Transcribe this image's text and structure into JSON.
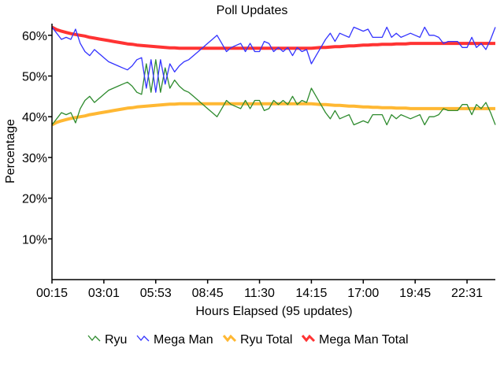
{
  "chart_data": {
    "type": "line",
    "title": "Poll Updates",
    "xlabel": "Hours Elapsed (95 updates)",
    "ylabel": "Percentage",
    "ylim": [
      0,
      65
    ],
    "yticks": [
      "10%",
      "20%",
      "30%",
      "40%",
      "50%",
      "60%"
    ],
    "ytick_values": [
      10,
      20,
      30,
      40,
      50,
      60
    ],
    "xticks": [
      "00:15",
      "03:01",
      "05:53",
      "08:45",
      "11:30",
      "14:15",
      "17:00",
      "19:45",
      "22:31"
    ],
    "xtick_indices": [
      0,
      11,
      22,
      33,
      44,
      55,
      66,
      77,
      88
    ],
    "legend_position": "bottom",
    "series": [
      {
        "name": "Ryu",
        "color": "#2e8b2e",
        "width": 1.3,
        "values": [
          38,
          39.5,
          41,
          40.5,
          41,
          38.5,
          42,
          44,
          45,
          43.5,
          44.5,
          45.5,
          46.5,
          47,
          47.5,
          48,
          48.5,
          47.5,
          46,
          45.5,
          53,
          46,
          54,
          46,
          52,
          47,
          49,
          47.5,
          46.5,
          46,
          45,
          44,
          43,
          42,
          41,
          40,
          42,
          44,
          43,
          42.5,
          42,
          44,
          42,
          44,
          44,
          41.5,
          42,
          44,
          43,
          44,
          43,
          45,
          43,
          44,
          43.5,
          47,
          45,
          43,
          41,
          39.5,
          41.5,
          39.5,
          40,
          40.5,
          38,
          38.5,
          39,
          38.5,
          40.5,
          40.5,
          40.5,
          38,
          40.5,
          39.5,
          40.5,
          40,
          39.5,
          40,
          40.5,
          38,
          40,
          40,
          40.5,
          42,
          41.5,
          41.5,
          41.5,
          43,
          43,
          40.5,
          43,
          42,
          43.5,
          41,
          38
        ]
      },
      {
        "name": "Mega Man",
        "color": "#3333ff",
        "width": 1.3,
        "values": [
          62,
          60.5,
          59,
          59.5,
          59,
          61.5,
          58,
          56,
          55,
          56.5,
          55.5,
          54.5,
          53.5,
          53,
          52.5,
          52,
          51.5,
          52.5,
          54,
          54.5,
          47,
          54,
          46,
          54,
          48,
          53,
          51,
          52.5,
          53.5,
          54,
          55,
          56,
          57,
          58,
          59,
          60,
          58,
          56,
          57,
          57.5,
          58,
          56,
          58,
          56,
          56,
          58.5,
          58,
          56,
          57,
          56,
          57,
          55,
          57,
          56,
          56.5,
          53,
          55,
          57,
          59,
          60.5,
          58.5,
          60.5,
          60,
          59.5,
          62,
          61.5,
          61,
          61.5,
          59.5,
          59.5,
          59.5,
          62,
          59.5,
          60.5,
          59.5,
          60,
          60.5,
          60,
          59.5,
          62,
          60,
          60,
          59.5,
          58,
          58.5,
          58.5,
          58.5,
          57,
          57,
          59.5,
          57,
          58,
          56.5,
          59,
          62
        ]
      },
      {
        "name": "Ryu Total",
        "color": "#ffb833",
        "width": 4,
        "values": [
          38,
          38.6,
          39,
          39.3,
          39.6,
          39.8,
          40,
          40.2,
          40.5,
          40.7,
          40.9,
          41.1,
          41.3,
          41.5,
          41.7,
          41.9,
          42.1,
          42.2,
          42.4,
          42.5,
          42.6,
          42.7,
          42.8,
          42.9,
          43,
          43.1,
          43.1,
          43.2,
          43.2,
          43.2,
          43.2,
          43.2,
          43.2,
          43.2,
          43.2,
          43.2,
          43.2,
          43.2,
          43.2,
          43.2,
          43.2,
          43.2,
          43.2,
          43.2,
          43.2,
          43.2,
          43.2,
          43.2,
          43.2,
          43.2,
          43.2,
          43.2,
          43.2,
          43.2,
          43.2,
          43.2,
          43.1,
          43,
          43,
          42.9,
          42.8,
          42.8,
          42.7,
          42.6,
          42.6,
          42.5,
          42.4,
          42.4,
          42.3,
          42.3,
          42.2,
          42.2,
          42.2,
          42.1,
          42.1,
          42.1,
          42,
          42,
          42,
          42,
          42,
          42,
          42,
          42,
          42,
          42,
          42,
          42,
          42,
          42,
          42,
          42,
          42,
          42,
          42
        ]
      },
      {
        "name": "Mega Man Total",
        "color": "#ff3333",
        "width": 4,
        "values": [
          62,
          61.4,
          61,
          60.7,
          60.4,
          60.2,
          60,
          59.8,
          59.5,
          59.3,
          59.1,
          58.9,
          58.7,
          58.5,
          58.3,
          58.1,
          57.9,
          57.8,
          57.6,
          57.5,
          57.4,
          57.3,
          57.2,
          57.1,
          57,
          56.9,
          56.9,
          56.8,
          56.8,
          56.8,
          56.8,
          56.8,
          56.8,
          56.8,
          56.8,
          56.8,
          56.8,
          56.8,
          56.8,
          56.8,
          56.8,
          56.8,
          56.8,
          56.8,
          56.8,
          56.8,
          56.8,
          56.8,
          56.8,
          56.8,
          56.8,
          56.8,
          56.8,
          56.8,
          56.8,
          56.8,
          56.9,
          57,
          57,
          57.1,
          57.2,
          57.2,
          57.3,
          57.4,
          57.4,
          57.5,
          57.6,
          57.6,
          57.7,
          57.7,
          57.8,
          57.8,
          57.8,
          57.9,
          57.9,
          57.9,
          58,
          58,
          58,
          58,
          58,
          58,
          58,
          58,
          58,
          58,
          58,
          58,
          58,
          58,
          58,
          58,
          58,
          58,
          58
        ]
      }
    ]
  }
}
